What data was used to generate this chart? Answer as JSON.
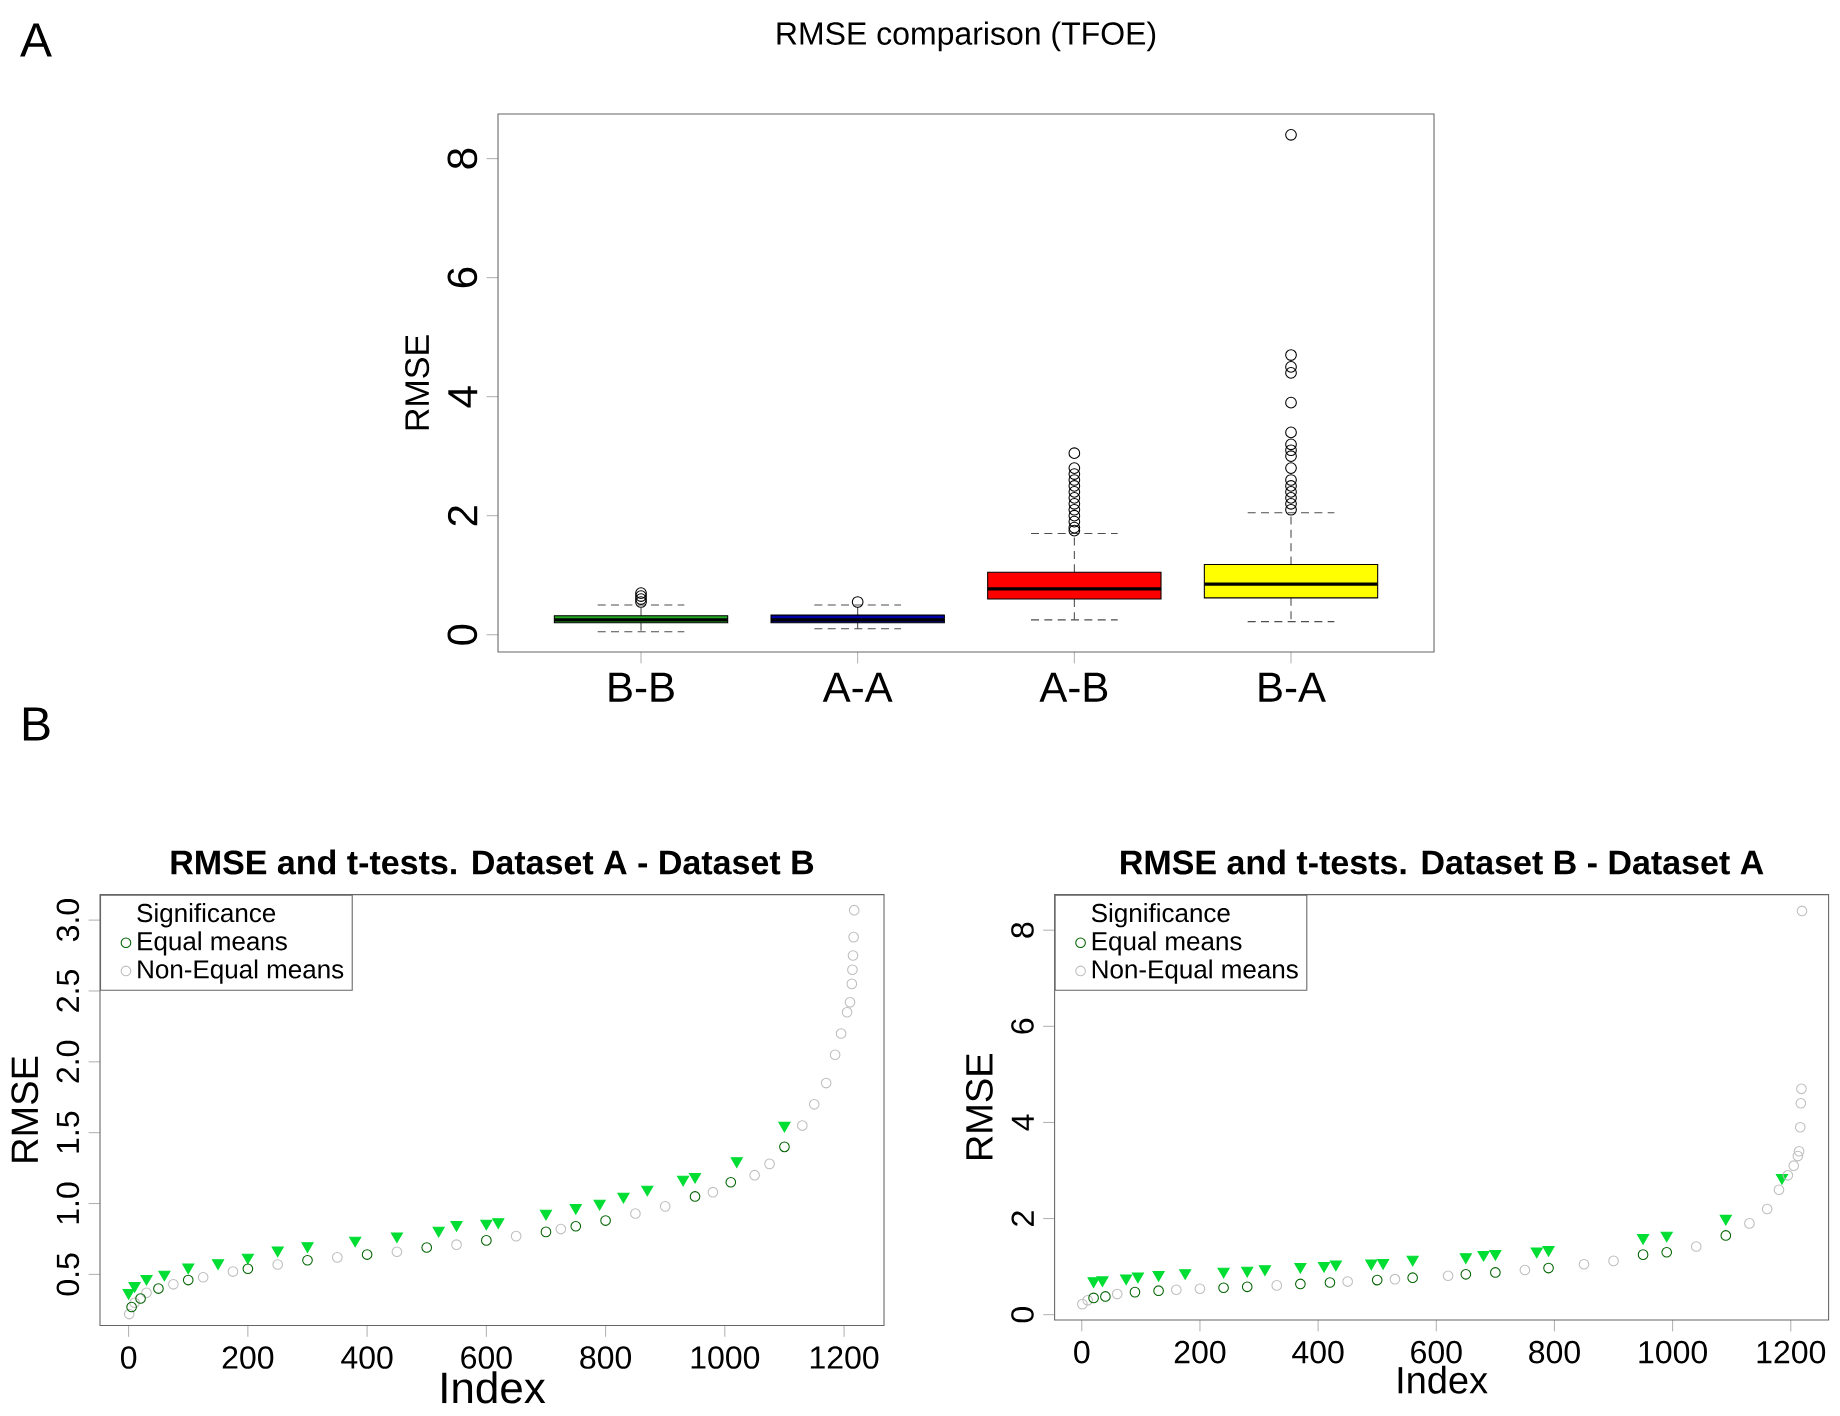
{
  "chart_data": [
    {
      "type": "box",
      "title": "RMSE comparison (TFOE)",
      "ylabel": "RMSE",
      "annotations": [
        "A"
      ],
      "categories": [
        "B-B",
        "A-A",
        "A-B",
        "B-A"
      ],
      "colors": [
        "#22aa22",
        "#0000aa",
        "#ff0000",
        "#ffff00"
      ],
      "boxes": [
        {
          "low": 0.05,
          "q1": 0.2,
          "median": 0.25,
          "q3": 0.32,
          "high": 0.5,
          "outliers": [
            0.55,
            0.6,
            0.65,
            0.7
          ]
        },
        {
          "low": 0.1,
          "q1": 0.2,
          "median": 0.25,
          "q3": 0.33,
          "high": 0.5,
          "outliers": [
            0.55
          ]
        },
        {
          "low": 0.25,
          "q1": 0.6,
          "median": 0.77,
          "q3": 1.05,
          "high": 1.7,
          "outliers": [
            1.75,
            1.8,
            1.9,
            2.0,
            2.1,
            2.2,
            2.3,
            2.4,
            2.5,
            2.6,
            2.7,
            2.8,
            3.05
          ]
        },
        {
          "low": 0.22,
          "q1": 0.62,
          "median": 0.85,
          "q3": 1.18,
          "high": 2.05,
          "outliers": [
            2.1,
            2.2,
            2.3,
            2.4,
            2.5,
            2.6,
            2.8,
            3.0,
            3.1,
            3.2,
            3.4,
            3.9,
            4.4,
            4.5,
            4.7,
            8.4
          ]
        }
      ],
      "ylim": [
        -0.29,
        8.75
      ],
      "yticks": [
        0,
        2,
        4,
        6,
        8
      ]
    },
    {
      "type": "scatter",
      "title": "RMSE and t-tests. Dataset A - Dataset B",
      "xlabel": "Index",
      "ylabel": "RMSE",
      "annotations": [
        "B"
      ],
      "legend": "top left",
      "legend_title": "Significance",
      "series": [
        {
          "name": "Equal means",
          "color": "#006400",
          "marker": "circle",
          "x": [
            5,
            20,
            50,
            100,
            200,
            300,
            400,
            500,
            600,
            700,
            750,
            800,
            950,
            1010,
            1100
          ],
          "values": [
            0.27,
            0.33,
            0.4,
            0.46,
            0.54,
            0.6,
            0.64,
            0.69,
            0.74,
            0.8,
            0.84,
            0.88,
            1.05,
            1.15,
            1.4
          ]
        },
        {
          "name": "Non-Equal means",
          "color": "#bebebe",
          "marker": "circle",
          "x": [
            1,
            10,
            30,
            75,
            125,
            175,
            250,
            350,
            450,
            550,
            650,
            725,
            850,
            900,
            980,
            1050,
            1075,
            1130,
            1150,
            1170,
            1185,
            1195,
            1205,
            1210,
            1213,
            1214,
            1215,
            1216,
            1217
          ],
          "values": [
            0.22,
            0.3,
            0.37,
            0.43,
            0.48,
            0.52,
            0.57,
            0.62,
            0.66,
            0.71,
            0.77,
            0.82,
            0.93,
            0.98,
            1.08,
            1.2,
            1.28,
            1.55,
            1.7,
            1.85,
            2.05,
            2.2,
            2.35,
            2.42,
            2.55,
            2.65,
            2.75,
            2.88,
            3.07
          ]
        },
        {
          "color": "#00dd33",
          "marker": "triangle",
          "x": [
            0,
            10,
            30,
            60,
            100,
            150,
            200,
            250,
            300,
            380,
            450,
            520,
            550,
            600,
            620,
            700,
            750,
            790,
            830,
            870,
            930,
            950,
            1020,
            1100
          ],
          "values": [
            0.37,
            0.42,
            0.47,
            0.5,
            0.55,
            0.58,
            0.62,
            0.67,
            0.7,
            0.74,
            0.77,
            0.81,
            0.85,
            0.86,
            0.87,
            0.93,
            0.97,
            1.0,
            1.05,
            1.1,
            1.17,
            1.19,
            1.3,
            1.55
          ]
        }
      ],
      "xlim": [
        -48,
        1267
      ],
      "xticks": [
        0,
        200,
        400,
        600,
        800,
        1000,
        1200
      ],
      "ylim": [
        0.14,
        3.18
      ],
      "yticks": [
        {
          "value": 0.5,
          "label": "0.5"
        },
        {
          "value": 1,
          "label": "1.0"
        },
        {
          "value": 1.5,
          "label": "1.5"
        },
        {
          "value": 2,
          "label": "2.0"
        },
        {
          "value": 2.5,
          "label": "2.5"
        },
        {
          "value": 3,
          "label": "3.0"
        }
      ]
    },
    {
      "type": "scatter",
      "title": "RMSE and t-tests. Dataset B - Dataset A",
      "xlabel": "Index",
      "ylabel": "RMSE",
      "legend": "top left",
      "legend_title": "Significance",
      "series": [
        {
          "name": "Equal means",
          "color": "#006400",
          "marker": "circle",
          "x": [
            20,
            40,
            90,
            130,
            240,
            280,
            370,
            420,
            500,
            560,
            650,
            700,
            790,
            950,
            990,
            1090
          ],
          "values": [
            0.35,
            0.38,
            0.47,
            0.5,
            0.56,
            0.58,
            0.64,
            0.67,
            0.72,
            0.77,
            0.84,
            0.88,
            0.97,
            1.25,
            1.3,
            1.65
          ]
        },
        {
          "name": "Non-Equal means",
          "color": "#bebebe",
          "marker": "circle",
          "x": [
            1,
            10,
            60,
            160,
            200,
            330,
            450,
            530,
            620,
            750,
            850,
            900,
            1040,
            1130,
            1160,
            1180,
            1195,
            1205,
            1212,
            1214,
            1216,
            1217,
            1218,
            1219
          ],
          "values": [
            0.22,
            0.3,
            0.43,
            0.52,
            0.54,
            0.61,
            0.69,
            0.74,
            0.81,
            0.93,
            1.05,
            1.12,
            1.42,
            1.9,
            2.2,
            2.6,
            2.9,
            3.1,
            3.3,
            3.4,
            3.9,
            4.4,
            4.7,
            8.4
          ]
        },
        {
          "color": "#00dd33",
          "marker": "triangle",
          "x": [
            20,
            35,
            75,
            95,
            130,
            175,
            240,
            280,
            310,
            370,
            410,
            430,
            490,
            510,
            560,
            650,
            680,
            700,
            770,
            790,
            950,
            990,
            1090,
            1185
          ],
          "values": [
            0.7,
            0.72,
            0.76,
            0.8,
            0.83,
            0.87,
            0.9,
            0.92,
            0.95,
            1.0,
            1.02,
            1.05,
            1.07,
            1.08,
            1.15,
            1.2,
            1.25,
            1.27,
            1.32,
            1.35,
            1.6,
            1.65,
            2.0,
            2.85
          ]
        }
      ],
      "xlim": [
        -46,
        1264
      ],
      "xticks": [
        0,
        200,
        400,
        600,
        800,
        1000,
        1200
      ],
      "ylim": [
        -0.11,
        8.74
      ],
      "yticks": [
        0,
        2,
        4,
        6,
        8
      ]
    }
  ]
}
